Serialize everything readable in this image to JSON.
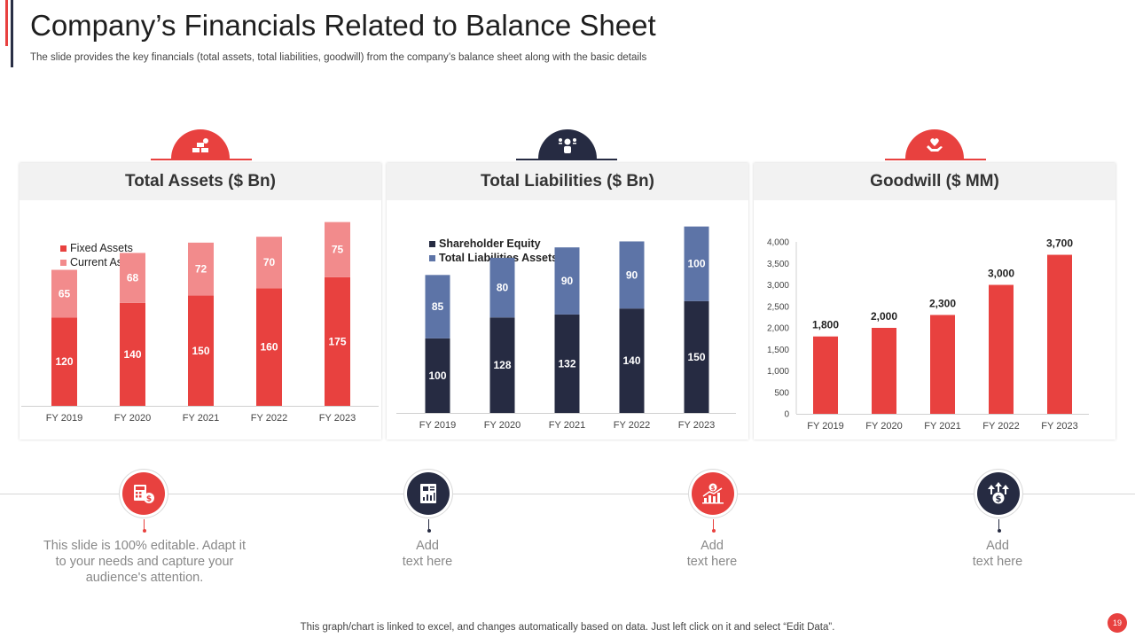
{
  "header": {
    "title": "Company’s Financials Related to Balance Sheet",
    "subtitle": "The slide provides the key financials (total assets, total liabilities, goodwill) from the company’s balance sheet along with the basic details"
  },
  "colors": {
    "red": "#e8413f",
    "light_red": "#f28b8c",
    "navy": "#262b42",
    "steel_blue": "#5d74a7"
  },
  "panels": [
    {
      "title": "Total Assets ($ Bn)",
      "icon": "gold-bars-icon"
    },
    {
      "title": "Total Liabilities ($ Bn)",
      "icon": "balance-people-icon"
    },
    {
      "title": "Goodwill ($ MM)",
      "icon": "hand-heart-icon"
    }
  ],
  "chart_data": [
    {
      "type": "bar",
      "stacked": true,
      "title": "Total Assets ($ Bn)",
      "categories": [
        "FY 2019",
        "FY 2020",
        "FY 2021",
        "FY 2022",
        "FY 2023"
      ],
      "series": [
        {
          "name": "Fixed Assets",
          "color": "#e8413f",
          "values": [
            120,
            140,
            150,
            160,
            175
          ]
        },
        {
          "name": "Current Assets",
          "color": "#f28b8c",
          "values": [
            65,
            68,
            72,
            70,
            75
          ]
        }
      ],
      "ylim": [
        0,
        270
      ],
      "grid": false,
      "legend": "top-left"
    },
    {
      "type": "bar",
      "stacked": true,
      "title": "Total Liabilities ($ Bn)",
      "categories": [
        "FY 2019",
        "FY 2020",
        "FY 2021",
        "FY 2022",
        "FY 2023"
      ],
      "series": [
        {
          "name": "Shareholder Equity",
          "color": "#262b42",
          "values": [
            100,
            128,
            132,
            140,
            150
          ]
        },
        {
          "name": "Total Liabilities Assets",
          "color": "#5d74a7",
          "values": [
            85,
            80,
            90,
            90,
            100
          ]
        }
      ],
      "ylim": [
        0,
        265
      ],
      "grid": false,
      "legend": "top-left"
    },
    {
      "type": "bar",
      "title": "Goodwill ($ MM)",
      "categories": [
        "FY 2019",
        "FY 2020",
        "FY 2021",
        "FY 2022",
        "FY 2023"
      ],
      "values": [
        1800,
        2000,
        2300,
        3000,
        3700
      ],
      "color": "#e8413f",
      "yticks": [
        "0",
        "500",
        "1,000",
        "1,500",
        "2,000",
        "2,500",
        "3,000",
        "3,500",
        "4,000"
      ],
      "ylim": [
        0,
        4000
      ],
      "grid": false,
      "legend": "none"
    }
  ],
  "bottom_items": [
    {
      "text": "This slide is 100% editable.  Adapt it to your needs and capture your audience's attention.",
      "icon": "calculator-dollar-icon"
    },
    {
      "text": "Add\ntext here",
      "icon": "report-chart-icon"
    },
    {
      "text": "Add\ntext here",
      "icon": "rising-chart-dollar-icon"
    },
    {
      "text": "Add\ntext here",
      "icon": "dollar-arrows-up-icon"
    }
  ],
  "footer": {
    "note": "This graph/chart is linked to excel,  and changes automatically based on data. Just left click on it and select “Edit Data”.",
    "page_number": "19"
  }
}
